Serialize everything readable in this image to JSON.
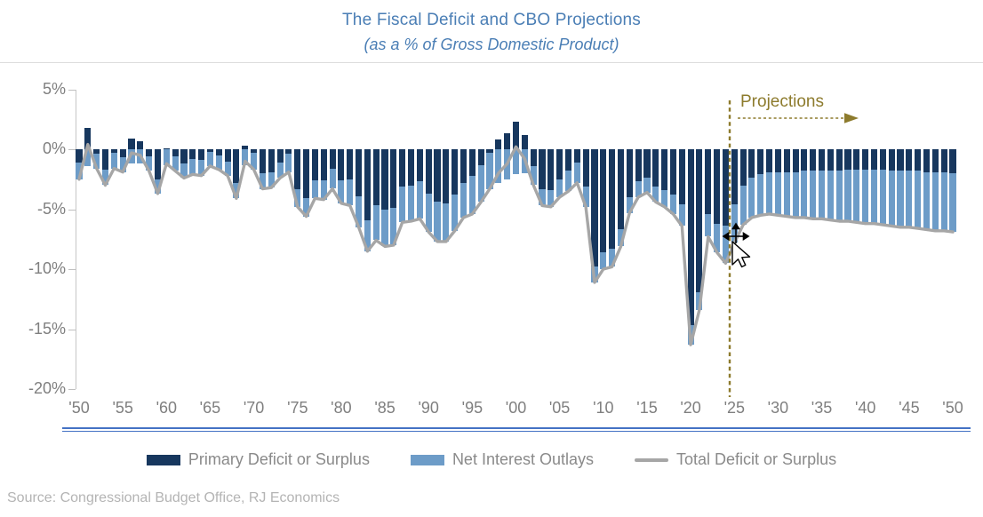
{
  "header": {
    "title": "The Fiscal Deficit and CBO Projections",
    "subtitle": "(as a % of Gross Domestic Product)"
  },
  "chart_data": {
    "type": "bar",
    "stacked": true,
    "x_start_year": 1950,
    "x_end_year": 2050,
    "x": [
      1950,
      1951,
      1952,
      1953,
      1954,
      1955,
      1956,
      1957,
      1958,
      1959,
      1960,
      1961,
      1962,
      1963,
      1964,
      1965,
      1966,
      1967,
      1968,
      1969,
      1970,
      1971,
      1972,
      1973,
      1974,
      1975,
      1976,
      1977,
      1978,
      1979,
      1980,
      1981,
      1982,
      1983,
      1984,
      1985,
      1986,
      1987,
      1988,
      1989,
      1990,
      1991,
      1992,
      1993,
      1994,
      1995,
      1996,
      1997,
      1998,
      1999,
      2000,
      2001,
      2002,
      2003,
      2004,
      2005,
      2006,
      2007,
      2008,
      2009,
      2010,
      2011,
      2012,
      2013,
      2014,
      2015,
      2016,
      2017,
      2018,
      2019,
      2020,
      2021,
      2022,
      2023,
      2024,
      2025,
      2026,
      2027,
      2028,
      2029,
      2030,
      2031,
      2032,
      2033,
      2034,
      2035,
      2036,
      2037,
      2038,
      2039,
      2040,
      2041,
      2042,
      2043,
      2044,
      2045,
      2046,
      2047,
      2048,
      2049,
      2050
    ],
    "series": [
      {
        "name": "Primary Deficit or Surplus",
        "color": "#17375E",
        "values": [
          -1.1,
          1.8,
          -0.4,
          -1.7,
          -0.3,
          -0.7,
          0.9,
          0.7,
          -0.6,
          -2.5,
          0.1,
          -0.6,
          -1.2,
          -0.8,
          -0.9,
          -0.2,
          -0.5,
          -1.0,
          -2.8,
          0.3,
          -0.3,
          -2.0,
          -1.9,
          -1.1,
          -0.4,
          -3.3,
          -4.1,
          -2.6,
          -2.6,
          -1.6,
          -2.6,
          -2.5,
          -3.9,
          -5.9,
          -4.7,
          -5.0,
          -4.9,
          -3.1,
          -3.0,
          -2.7,
          -3.7,
          -4.4,
          -4.5,
          -3.8,
          -2.8,
          -2.2,
          -1.3,
          -0.3,
          0.8,
          1.3,
          2.3,
          1.2,
          -1.4,
          -3.3,
          -3.4,
          -2.5,
          -1.8,
          -1.1,
          -3.1,
          -9.8,
          -8.6,
          -8.3,
          -6.7,
          -4.0,
          -2.7,
          -2.4,
          -3.1,
          -3.4,
          -3.8,
          -4.6,
          -14.7,
          -11.9,
          -5.4,
          -6.2,
          -6.4,
          -4.6,
          -3.0,
          -2.4,
          -2.1,
          -1.9,
          -1.9,
          -1.9,
          -1.9,
          -1.8,
          -1.8,
          -1.8,
          -1.8,
          -1.8,
          -1.7,
          -1.7,
          -1.7,
          -1.7,
          -1.7,
          -1.8,
          -1.8,
          -1.8,
          -1.8,
          -1.9,
          -1.9,
          -1.9,
          -2.0
        ]
      },
      {
        "name": "Net Interest Outlays",
        "color": "#6D9CC8",
        "values": [
          -1.4,
          -1.4,
          -1.2,
          -1.3,
          -1.3,
          -1.2,
          -1.2,
          -1.2,
          -1.2,
          -1.2,
          -1.3,
          -1.2,
          -1.2,
          -1.3,
          -1.3,
          -1.2,
          -1.2,
          -1.2,
          -1.3,
          -1.3,
          -1.4,
          -1.3,
          -1.3,
          -1.3,
          -1.5,
          -1.5,
          -1.5,
          -1.5,
          -1.6,
          -1.7,
          -1.9,
          -2.2,
          -2.6,
          -2.6,
          -2.9,
          -3.1,
          -3.1,
          -3.0,
          -3.0,
          -3.1,
          -3.2,
          -3.3,
          -3.2,
          -3.0,
          -2.9,
          -3.2,
          -3.1,
          -3.0,
          -2.8,
          -2.5,
          -2.1,
          -2.0,
          -1.6,
          -1.4,
          -1.4,
          -1.5,
          -1.7,
          -1.7,
          -1.7,
          -1.3,
          -1.4,
          -1.5,
          -1.4,
          -1.3,
          -1.3,
          -1.2,
          -1.3,
          -1.4,
          -1.6,
          -1.8,
          -1.6,
          -1.5,
          -1.9,
          -2.4,
          -3.1,
          -3.2,
          -3.3,
          -3.3,
          -3.4,
          -3.5,
          -3.6,
          -3.7,
          -3.8,
          -3.9,
          -4.0,
          -4.0,
          -4.1,
          -4.2,
          -4.3,
          -4.4,
          -4.5,
          -4.5,
          -4.6,
          -4.6,
          -4.7,
          -4.7,
          -4.8,
          -4.8,
          -4.9,
          -4.9,
          -4.9
        ]
      },
      {
        "name": "Total Deficit or Surplus",
        "type": "line",
        "color": "#A6A6A6",
        "values": [
          -2.5,
          0.4,
          -1.6,
          -3.0,
          -1.6,
          -1.9,
          -0.3,
          -0.5,
          -1.8,
          -3.7,
          -1.2,
          -1.8,
          -2.4,
          -2.1,
          -2.2,
          -1.4,
          -1.7,
          -2.2,
          -4.1,
          -1.0,
          -1.7,
          -3.3,
          -3.2,
          -2.4,
          -1.9,
          -4.8,
          -5.6,
          -4.1,
          -4.2,
          -3.3,
          -4.5,
          -4.7,
          -6.5,
          -8.5,
          -7.6,
          -8.1,
          -8.0,
          -6.1,
          -6.0,
          -5.8,
          -6.9,
          -7.7,
          -7.7,
          -6.8,
          -5.7,
          -5.4,
          -4.4,
          -3.3,
          -2.0,
          -1.2,
          0.2,
          -0.8,
          -3.0,
          -4.7,
          -4.8,
          -4.0,
          -3.5,
          -2.8,
          -4.8,
          -11.1,
          -10.0,
          -9.8,
          -8.1,
          -5.3,
          -4.0,
          -3.6,
          -4.4,
          -4.8,
          -5.4,
          -6.4,
          -16.3,
          -13.4,
          -7.3,
          -8.6,
          -9.5,
          -7.8,
          -6.3,
          -5.7,
          -5.5,
          -5.4,
          -5.5,
          -5.6,
          -5.7,
          -5.7,
          -5.8,
          -5.8,
          -5.9,
          -6.0,
          -6.0,
          -6.1,
          -6.2,
          -6.2,
          -6.3,
          -6.4,
          -6.5,
          -6.5,
          -6.6,
          -6.7,
          -6.8,
          -6.8,
          -6.9
        ]
      }
    ],
    "ylim": [
      -20,
      5
    ],
    "ytick_values": [
      5,
      0,
      -5,
      -10,
      -15,
      -20
    ],
    "ytick_labels": [
      "5%",
      "0%",
      "-5%",
      "-10%",
      "-15%",
      "-20%"
    ],
    "xtick_years": [
      1950,
      1955,
      1960,
      1965,
      1970,
      1975,
      1980,
      1985,
      1990,
      1995,
      2000,
      2005,
      2010,
      2015,
      2020,
      2025,
      2030,
      2035,
      2040,
      2045,
      2050
    ],
    "xtick_labels": [
      "'50",
      "'55",
      "'60",
      "'65",
      "'70",
      "'75",
      "'80",
      "'85",
      "'90",
      "'95",
      "'00",
      "'05",
      "'10",
      "'15",
      "'20",
      "'25",
      "'30",
      "'35",
      "'40",
      "'45",
      "'50"
    ],
    "grid": false,
    "legend_position": "bottom",
    "annotations": {
      "projections_label": "Projections",
      "projection_start_year": 2025,
      "projection_line_color": "#8D7B2D"
    }
  },
  "source": {
    "text": "Source: Congressional Budget Office, RJ Economics"
  }
}
